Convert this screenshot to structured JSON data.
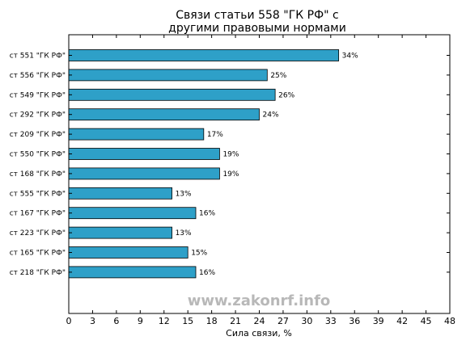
{
  "chart_data": {
    "type": "bar",
    "orientation": "horizontal",
    "title_lines": [
      "Связи статьи 558 \"ГК РФ\" с",
      "другими правовыми нормами"
    ],
    "xlabel": "Сила связи, %",
    "ylabel": "",
    "xlim": [
      0,
      48
    ],
    "xticks": [
      0,
      3,
      6,
      9,
      12,
      15,
      18,
      21,
      24,
      27,
      30,
      33,
      36,
      39,
      42,
      45,
      48
    ],
    "grid": false,
    "bar_color": "#2ea0c8",
    "categories": [
      "ст 551 \"ГК РФ\"",
      "ст 556 \"ГК РФ\"",
      "ст 549 \"ГК РФ\"",
      "ст 292 \"ГК РФ\"",
      "ст 209 \"ГК РФ\"",
      "ст 550 \"ГК РФ\"",
      "ст 168 \"ГК РФ\"",
      "ст 555 \"ГК РФ\"",
      "ст 167 \"ГК РФ\"",
      "ст 223 \"ГК РФ\"",
      "ст 165 \"ГК РФ\"",
      "ст 218 \"ГК РФ\""
    ],
    "values": [
      34,
      25,
      26,
      24,
      17,
      19,
      19,
      13,
      16,
      13,
      15,
      16
    ],
    "value_labels": [
      "34%",
      "25%",
      "26%",
      "24%",
      "17%",
      "19%",
      "19%",
      "13%",
      "16%",
      "13%",
      "15%",
      "16%"
    ]
  },
  "watermark": "www.zakonrf.info"
}
